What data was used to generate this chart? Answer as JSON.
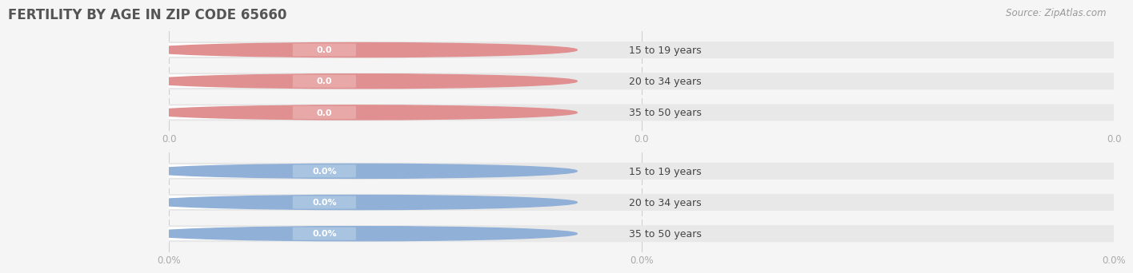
{
  "title": "FERTILITY BY AGE IN ZIP CODE 65660",
  "source": "Source: ZipAtlas.com",
  "sections": [
    {
      "categories": [
        "15 to 19 years",
        "20 to 34 years",
        "35 to 50 years"
      ],
      "values": [
        0.0,
        0.0,
        0.0
      ],
      "bar_bg_color": "#f2e0e0",
      "bar_fg_color": "#e8a0a0",
      "circle_color": "#e09090",
      "value_bg_color": "#e8a8a8",
      "value_text_color": "#ffffff",
      "label_color": "#444444",
      "xtick_labels": [
        "0.0",
        "0.0",
        "0.0"
      ]
    },
    {
      "categories": [
        "15 to 19 years",
        "20 to 34 years",
        "35 to 50 years"
      ],
      "values": [
        0.0,
        0.0,
        0.0
      ],
      "bar_bg_color": "#dce8f2",
      "bar_fg_color": "#a0c0e0",
      "circle_color": "#90b0d8",
      "value_bg_color": "#a8c4e0",
      "value_text_color": "#ffffff",
      "label_color": "#444444",
      "xtick_labels": [
        "0.0%",
        "0.0%",
        "0.0%"
      ]
    }
  ],
  "bg_color": "#f5f5f5",
  "bar_bg_color": "#e8e8e8",
  "white_bar_color": "#ffffff",
  "title_fontsize": 12,
  "label_fontsize": 9,
  "value_fontsize": 8,
  "tick_fontsize": 8.5,
  "source_fontsize": 8.5,
  "title_color": "#555555",
  "tick_color": "#aaaaaa",
  "source_color": "#999999"
}
